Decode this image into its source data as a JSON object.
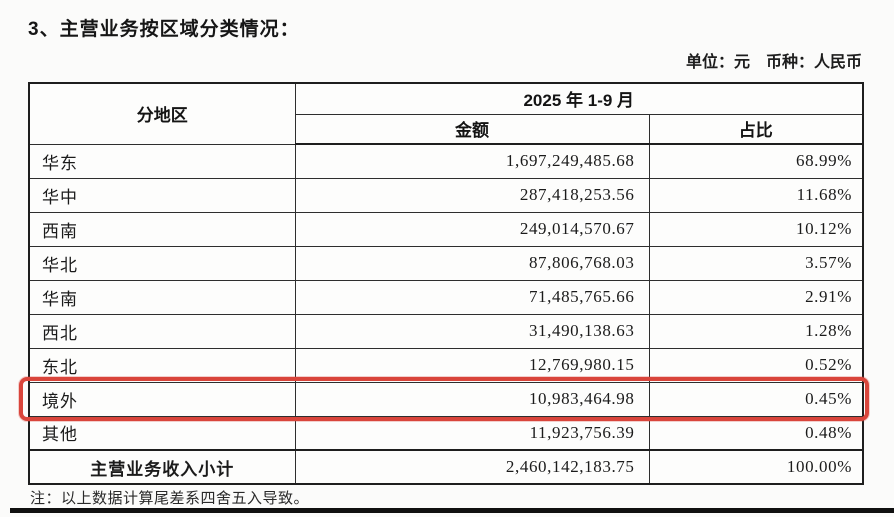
{
  "title": "3、主营业务按区域分类情况：",
  "unit_line": "单位：元　币种：人民币",
  "note": "注：以上数据计算尾差系四舍五入导致。",
  "table": {
    "header": {
      "region": "分地区",
      "period": "2025 年 1-9 月",
      "amount": "金额",
      "ratio": "占比"
    },
    "rows": [
      {
        "region": "华东",
        "amount": "1,697,249,485.68",
        "ratio": "68.99%",
        "highlight": false
      },
      {
        "region": "华中",
        "amount": "287,418,253.56",
        "ratio": "11.68%",
        "highlight": false
      },
      {
        "region": "西南",
        "amount": "249,014,570.67",
        "ratio": "10.12%",
        "highlight": false
      },
      {
        "region": "华北",
        "amount": "87,806,768.03",
        "ratio": "3.57%",
        "highlight": false
      },
      {
        "region": "华南",
        "amount": "71,485,765.66",
        "ratio": "2.91%",
        "highlight": false
      },
      {
        "region": "西北",
        "amount": "31,490,138.63",
        "ratio": "1.28%",
        "highlight": false
      },
      {
        "region": "东北",
        "amount": "12,769,980.15",
        "ratio": "0.52%",
        "highlight": false
      },
      {
        "region": "境外",
        "amount": "10,983,464.98",
        "ratio": "0.45%",
        "highlight": true
      },
      {
        "region": "其他",
        "amount": "11,923,756.39",
        "ratio": "0.48%",
        "highlight": false
      }
    ],
    "total_row": {
      "region": "主营业务收入小计",
      "amount": "2,460,142,183.75",
      "ratio": "100.00%"
    }
  },
  "colors": {
    "highlight_border": "#d9453b"
  }
}
